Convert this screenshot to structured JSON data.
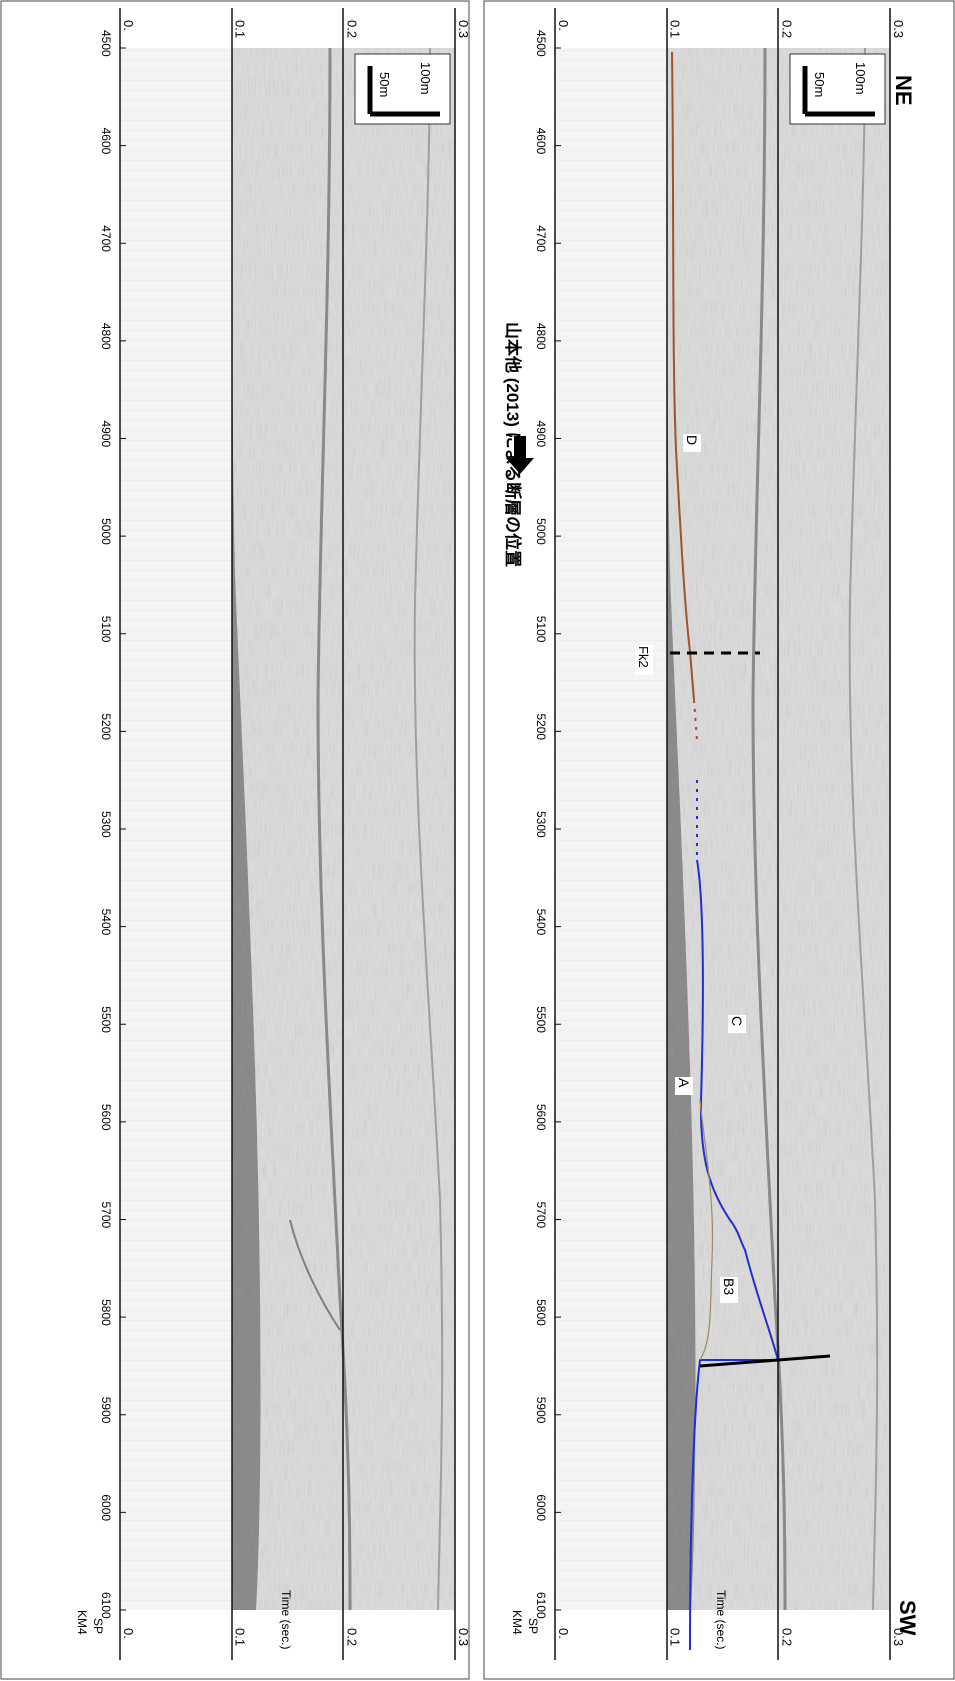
{
  "orientation": {
    "left": "NE",
    "right": "SW"
  },
  "line_label": "KM4",
  "sp_label": "SP",
  "time_axis_label": "Time (sec.)",
  "time_ticks": [
    "0.",
    "0.1",
    "0.2",
    "0.3"
  ],
  "time_values": [
    0.0,
    0.1,
    0.2,
    0.3
  ],
  "sp_ticks": [
    4500,
    4600,
    4700,
    4800,
    4900,
    5000,
    5100,
    5200,
    5300,
    5400,
    5500,
    5600,
    5700,
    5800,
    5900,
    6000,
    6100
  ],
  "scale_bar": {
    "horizontal": "50m",
    "vertical": "100m"
  },
  "panels": [
    {
      "name": "raw-profile",
      "interpreted": false
    },
    {
      "name": "interpreted-profile",
      "interpreted": true
    }
  ],
  "annotation": "山本他 (2013) による断層の位置",
  "units": [
    {
      "label": "D"
    },
    {
      "label": "Fk2"
    },
    {
      "label": "C"
    },
    {
      "label": "A"
    },
    {
      "label": "B3"
    }
  ],
  "colors": {
    "horizon_upper": "#a0522d",
    "horizon_lower": "#1f2fd0",
    "fault": "#000000",
    "unit_line": "#a08a60",
    "seismic_bg": "#e2e2e2"
  }
}
